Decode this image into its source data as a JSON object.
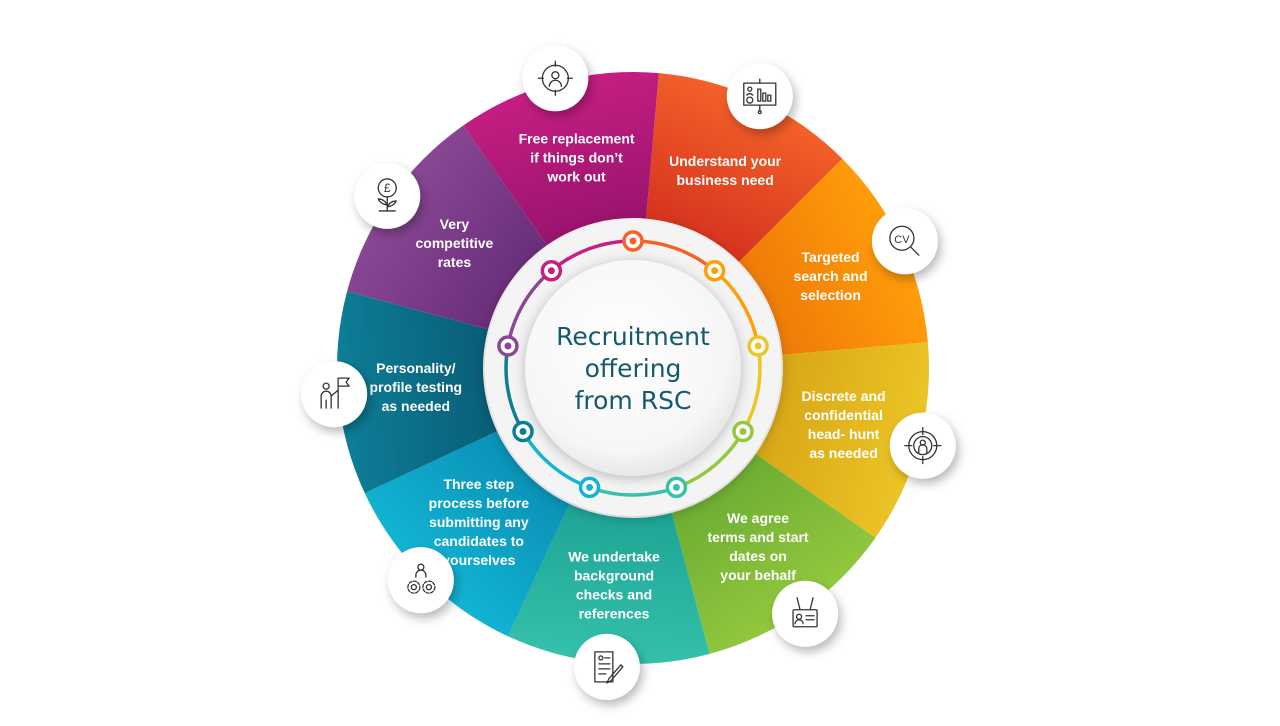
{
  "center": {
    "lines": [
      "Recruitment",
      "offering",
      "from RSC"
    ],
    "text_color": "#145a6e"
  },
  "segments": [
    {
      "name": "understand-need",
      "lines": [
        "Understand your",
        "business need"
      ],
      "color_outer": "#f4622a",
      "color_inner": "#d7361f",
      "icon": "presentation-board-icon"
    },
    {
      "name": "targeted-search",
      "lines": [
        "Targeted",
        "search and",
        "selection"
      ],
      "color_outer": "#ff9e0a",
      "color_inner": "#f07c08",
      "icon": "cv-magnifier-icon"
    },
    {
      "name": "discrete-headhunt",
      "lines": [
        "Discrete and",
        "confidential",
        "head- hunt",
        "as needed"
      ],
      "color_outer": "#ecc526",
      "color_inner": "#d9a818",
      "icon": "target-person-icon"
    },
    {
      "name": "agree-terms",
      "lines": [
        "We agree",
        "terms and start",
        "dates on",
        "your behalf"
      ],
      "color_outer": "#93c83e",
      "color_inner": "#6fae33",
      "icon": "id-badge-icon"
    },
    {
      "name": "background-checks",
      "lines": [
        "We undertake",
        "background",
        "checks and",
        "references"
      ],
      "color_outer": "#35c1ab",
      "color_inner": "#1fa696",
      "icon": "document-pen-icon"
    },
    {
      "name": "three-step-process",
      "lines": [
        "Three step",
        "process before",
        "submitting any",
        "candidates to",
        "yourselves"
      ],
      "color_outer": "#13b4d4",
      "color_inner": "#0a93b8",
      "icon": "person-gears-icon"
    },
    {
      "name": "personality-testing",
      "lines": [
        "Personality/",
        "profile testing",
        "as needed"
      ],
      "color_outer": "#0d7e98",
      "color_inner": "#0a5f78",
      "icon": "person-flag-icon"
    },
    {
      "name": "competitive-rates",
      "lines": [
        "Very",
        "competitive",
        "rates"
      ],
      "color_outer": "#8a4894",
      "color_inner": "#6b2f7c",
      "icon": "pound-plant-icon"
    },
    {
      "name": "free-replacement",
      "lines": [
        "Free replacement",
        "if things don’t",
        "work out"
      ],
      "color_outer": "#c61e82",
      "color_inner": "#9c1470",
      "icon": "person-target-icon"
    }
  ]
}
